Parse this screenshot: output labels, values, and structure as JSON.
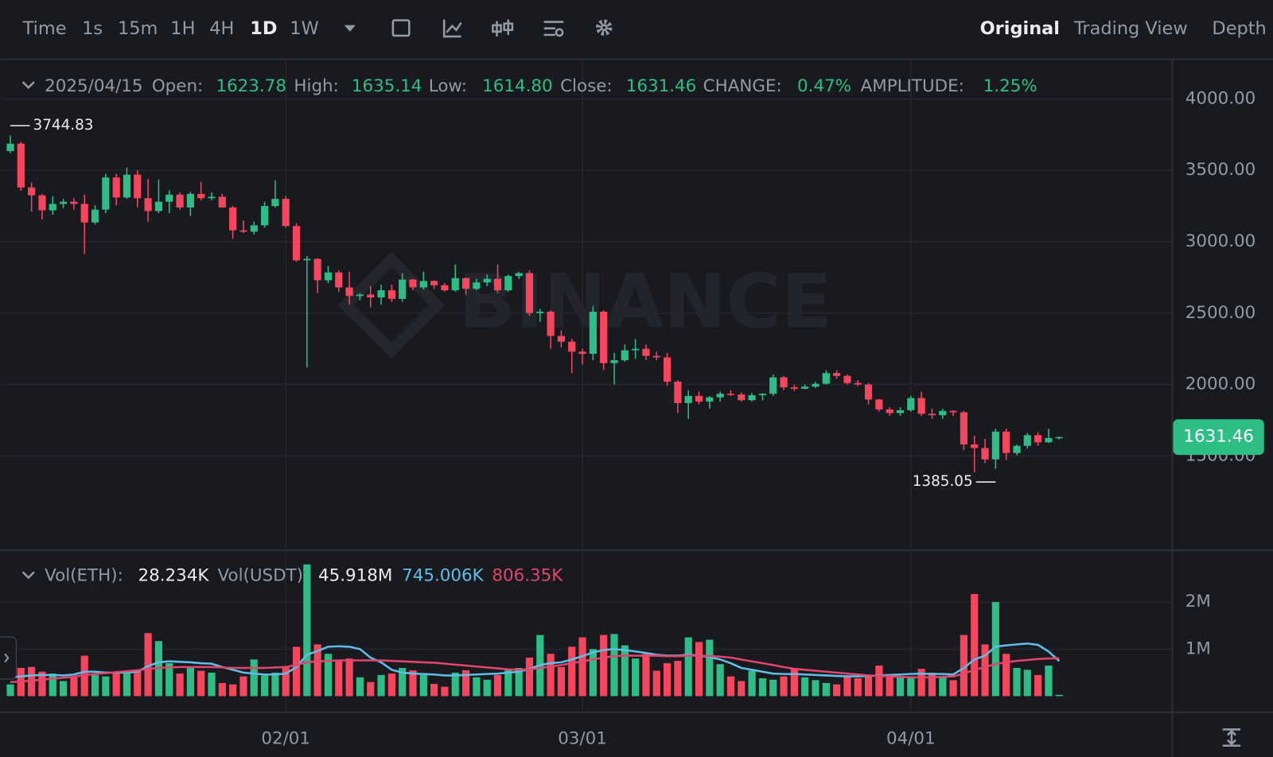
{
  "toolbar": {
    "intervals": [
      "Time",
      "1s",
      "15m",
      "1H",
      "4H",
      "1D",
      "1W"
    ],
    "views": [
      "Original",
      "Trading View",
      "Depth"
    ]
  },
  "header": {
    "date": "2025/04/15",
    "fields": [
      {
        "label": "Open:",
        "value": "1623.78"
      },
      {
        "label": "High:",
        "value": "1635.14"
      },
      {
        "label": "Low:",
        "value": "1614.80"
      },
      {
        "label": "Close:",
        "value": "1631.46"
      },
      {
        "label": "CHANGE:",
        "value": "0.47%"
      },
      {
        "label": "AMPLITUDE:",
        "value": "1.25%"
      }
    ]
  },
  "volume_legend": {
    "items": [
      "Vol(ETH):",
      "28.234K",
      "Vol(USDT)",
      "45.918M",
      "745.006K",
      "806.35K"
    ]
  },
  "watermark": "BINANCE",
  "chart_data": {
    "type": "candlestick",
    "categories": [
      null,
      null,
      null,
      null,
      null,
      null,
      null,
      null,
      null,
      null,
      null,
      null,
      null,
      null,
      null,
      null,
      null,
      null,
      null,
      null,
      null,
      null,
      null,
      null,
      null,
      null,
      "02/01",
      null,
      null,
      null,
      null,
      null,
      null,
      null,
      null,
      null,
      null,
      null,
      null,
      null,
      null,
      null,
      null,
      null,
      null,
      null,
      null,
      null,
      null,
      null,
      null,
      null,
      null,
      null,
      "03/01",
      null,
      null,
      null,
      null,
      null,
      null,
      null,
      null,
      null,
      null,
      null,
      null,
      null,
      null,
      null,
      null,
      null,
      null,
      null,
      null,
      null,
      null,
      null,
      null,
      null,
      null,
      null,
      null,
      null,
      null,
      "04/01",
      null,
      null,
      null,
      null,
      null,
      null,
      null,
      null,
      null,
      null,
      null,
      null,
      null,
      null
    ],
    "open": [
      3635,
      3687,
      3380,
      3325,
      3220,
      3265,
      3280,
      3265,
      3135,
      3225,
      3450,
      3310,
      3470,
      3305,
      3215,
      3280,
      3330,
      3240,
      3335,
      3305,
      3315,
      3240,
      3080,
      3070,
      3115,
      3250,
      3300,
      3110,
      2870,
      2880,
      2730,
      2785,
      2680,
      2620,
      2630,
      2610,
      2660,
      2600,
      2735,
      2680,
      2725,
      2695,
      2660,
      2745,
      2670,
      2715,
      2740,
      2660,
      2760,
      2780,
      2500,
      2510,
      2340,
      2300,
      2230,
      2215,
      2510,
      2150,
      2170,
      2240,
      2250,
      2200,
      2190,
      2020,
      1870,
      1920,
      1880,
      1910,
      1935,
      1930,
      1890,
      1925,
      1935,
      2050,
      1980,
      1970,
      1985,
      2005,
      2080,
      2060,
      2010,
      2000,
      1895,
      1825,
      1800,
      1820,
      1905,
      1795,
      1785,
      1815,
      1805,
      1580,
      1555,
      1475,
      1670,
      1520,
      1570,
      1645,
      1595,
      1623.78
    ],
    "high": [
      3744.83,
      3700,
      3415,
      3335,
      3320,
      3300,
      3305,
      3330,
      3255,
      3475,
      3475,
      3520,
      3500,
      3440,
      3435,
      3360,
      3345,
      3350,
      3420,
      3345,
      3335,
      3250,
      3150,
      3140,
      3280,
      3430,
      3320,
      3130,
      2900,
      2885,
      2830,
      2800,
      2790,
      2640,
      2690,
      2700,
      2700,
      2780,
      2740,
      2790,
      2730,
      2710,
      2840,
      2750,
      2740,
      2770,
      2840,
      2770,
      2790,
      2800,
      2530,
      2520,
      2380,
      2320,
      2250,
      2550,
      2520,
      2220,
      2280,
      2320,
      2280,
      2230,
      2220,
      2030,
      1960,
      1950,
      1920,
      1950,
      1960,
      1945,
      1940,
      1940,
      2070,
      2060,
      2000,
      2000,
      2020,
      2100,
      2100,
      2070,
      2030,
      2010,
      1900,
      1840,
      1840,
      1920,
      1950,
      1830,
      1830,
      1820,
      1815,
      1640,
      1620,
      1690,
      1690,
      1580,
      1660,
      1665,
      1690,
      1635.14
    ],
    "low": [
      3620,
      3357,
      3210,
      3155,
      3190,
      3235,
      3225,
      2915,
      3120,
      3200,
      3255,
      3300,
      3240,
      3140,
      3200,
      3200,
      3225,
      3180,
      3290,
      3290,
      3240,
      3020,
      3060,
      3050,
      3100,
      3240,
      3100,
      2860,
      2120,
      2640,
      2710,
      2650,
      2560,
      2590,
      2540,
      2560,
      2580,
      2580,
      2660,
      2665,
      2670,
      2650,
      2650,
      2630,
      2660,
      2690,
      2640,
      2650,
      2740,
      2480,
      2440,
      2250,
      2260,
      2080,
      2140,
      2170,
      2100,
      2000,
      2160,
      2180,
      2170,
      2170,
      1990,
      1800,
      1760,
      1860,
      1830,
      1880,
      1920,
      1880,
      1880,
      1890,
      1920,
      1960,
      1955,
      1965,
      1975,
      2000,
      2040,
      2000,
      1990,
      1860,
      1810,
      1780,
      1780,
      1810,
      1780,
      1760,
      1760,
      1780,
      1540,
      1385.05,
      1450,
      1410,
      1470,
      1505,
      1550,
      1570,
      1590,
      1614.8
    ],
    "close": [
      3687,
      3380,
      3325,
      3220,
      3265,
      3280,
      3265,
      3135,
      3225,
      3450,
      3310,
      3470,
      3305,
      3215,
      3280,
      3330,
      3240,
      3335,
      3305,
      3315,
      3240,
      3080,
      3070,
      3115,
      3250,
      3300,
      3110,
      2870,
      2880,
      2730,
      2785,
      2680,
      2620,
      2630,
      2610,
      2660,
      2600,
      2735,
      2680,
      2725,
      2695,
      2660,
      2745,
      2670,
      2715,
      2740,
      2660,
      2760,
      2780,
      2500,
      2510,
      2340,
      2300,
      2230,
      2215,
      2510,
      2150,
      2170,
      2240,
      2250,
      2200,
      2190,
      2020,
      1870,
      1920,
      1880,
      1910,
      1935,
      1930,
      1890,
      1925,
      1935,
      2050,
      1980,
      1970,
      1985,
      2005,
      2080,
      2060,
      2010,
      2000,
      1895,
      1825,
      1800,
      1820,
      1905,
      1795,
      1785,
      1815,
      1805,
      1580,
      1555,
      1475,
      1670,
      1520,
      1570,
      1645,
      1595,
      1625,
      1631.46
    ],
    "ylim": [
      840,
      4267
    ],
    "yticks": [
      {
        "value": 4000,
        "label": "4000.00"
      },
      {
        "value": 3500,
        "label": "3500.00"
      },
      {
        "value": 3000,
        "label": "3000.00"
      },
      {
        "value": 2500,
        "label": "2500.00"
      },
      {
        "value": 2000,
        "label": "2000.00"
      },
      {
        "value": 1500,
        "label": "1500.00"
      }
    ],
    "grid": true,
    "up_color": "#2ebd85",
    "down_color": "#f6465d",
    "annotations": [
      {
        "value": 3744.83,
        "label": "3744.83"
      },
      {
        "value": 1385.05,
        "label": "1385.05"
      }
    ],
    "last_price": {
      "value": 1631.46,
      "label": "1631.46"
    },
    "volume": {
      "values": [
        250000,
        600000,
        620000,
        520000,
        480000,
        320000,
        400000,
        860000,
        450000,
        420000,
        500000,
        480000,
        560000,
        1340000,
        1170000,
        700000,
        480000,
        620000,
        540000,
        500000,
        280000,
        250000,
        420000,
        780000,
        440000,
        500000,
        640000,
        1050000,
        2800000,
        1100000,
        900000,
        760000,
        800000,
        400000,
        300000,
        450000,
        480000,
        600000,
        550000,
        450000,
        260000,
        200000,
        500000,
        550000,
        400000,
        350000,
        450000,
        550000,
        600000,
        820000,
        1300000,
        900000,
        620000,
        1050000,
        1250000,
        1000000,
        1300000,
        1320000,
        1080000,
        800000,
        900000,
        540000,
        700000,
        750000,
        1250000,
        1150000,
        1200000,
        680000,
        420000,
        320000,
        540000,
        380000,
        350000,
        420000,
        600000,
        400000,
        340000,
        280000,
        250000,
        420000,
        380000,
        450000,
        650000,
        450000,
        400000,
        420000,
        580000,
        500000,
        400000,
        340000,
        1300000,
        2170000,
        1100000,
        2000000,
        900000,
        600000,
        560000,
        450000,
        650000,
        28234
      ],
      "ylim": [
        0,
        3070000
      ],
      "yticks": [
        {
          "value": 2000000,
          "label": "2M"
        },
        {
          "value": 1000000,
          "label": "1M"
        }
      ],
      "series": [
        {
          "color": "#5fbde6",
          "values": [
            400000,
            420000,
            440000,
            450000,
            450000,
            440000,
            460000,
            520000,
            520000,
            500000,
            500000,
            500000,
            520000,
            640000,
            720000,
            740000,
            730000,
            720000,
            700000,
            690000,
            620000,
            560000,
            500000,
            480000,
            460000,
            460000,
            480000,
            620000,
            880000,
            960000,
            1050000,
            1060000,
            1050000,
            1000000,
            820000,
            720000,
            560000,
            500000,
            480000,
            470000,
            460000,
            440000,
            440000,
            450000,
            460000,
            470000,
            480000,
            500000,
            520000,
            580000,
            660000,
            700000,
            720000,
            780000,
            850000,
            930000,
            980000,
            1000000,
            980000,
            950000,
            920000,
            880000,
            860000,
            860000,
            880000,
            860000,
            830000,
            780000,
            700000,
            600000,
            560000,
            520000,
            480000,
            470000,
            470000,
            460000,
            450000,
            440000,
            430000,
            420000,
            420000,
            430000,
            440000,
            450000,
            460000,
            470000,
            480000,
            470000,
            470000,
            460000,
            600000,
            780000,
            860000,
            1050000,
            1080000,
            1100000,
            1120000,
            1090000,
            950000,
            745006
          ]
        },
        {
          "color": "#e0466c",
          "values": [
            300000,
            310000,
            330000,
            350000,
            370000,
            390000,
            410000,
            450000,
            470000,
            490000,
            510000,
            530000,
            550000,
            580000,
            600000,
            610000,
            620000,
            620000,
            620000,
            620000,
            610000,
            600000,
            600000,
            600000,
            600000,
            610000,
            620000,
            660000,
            720000,
            740000,
            750000,
            760000,
            760000,
            760000,
            760000,
            760000,
            750000,
            740000,
            730000,
            720000,
            710000,
            690000,
            670000,
            650000,
            630000,
            610000,
            590000,
            570000,
            560000,
            570000,
            600000,
            630000,
            660000,
            700000,
            740000,
            780000,
            820000,
            850000,
            860000,
            860000,
            860000,
            860000,
            850000,
            850000,
            860000,
            860000,
            850000,
            840000,
            820000,
            780000,
            740000,
            700000,
            660000,
            620000,
            580000,
            560000,
            540000,
            520000,
            500000,
            480000,
            460000,
            440000,
            430000,
            420000,
            410000,
            400000,
            400000,
            400000,
            410000,
            420000,
            480000,
            560000,
            620000,
            680000,
            720000,
            750000,
            770000,
            790000,
            800000,
            806350
          ]
        }
      ]
    }
  }
}
